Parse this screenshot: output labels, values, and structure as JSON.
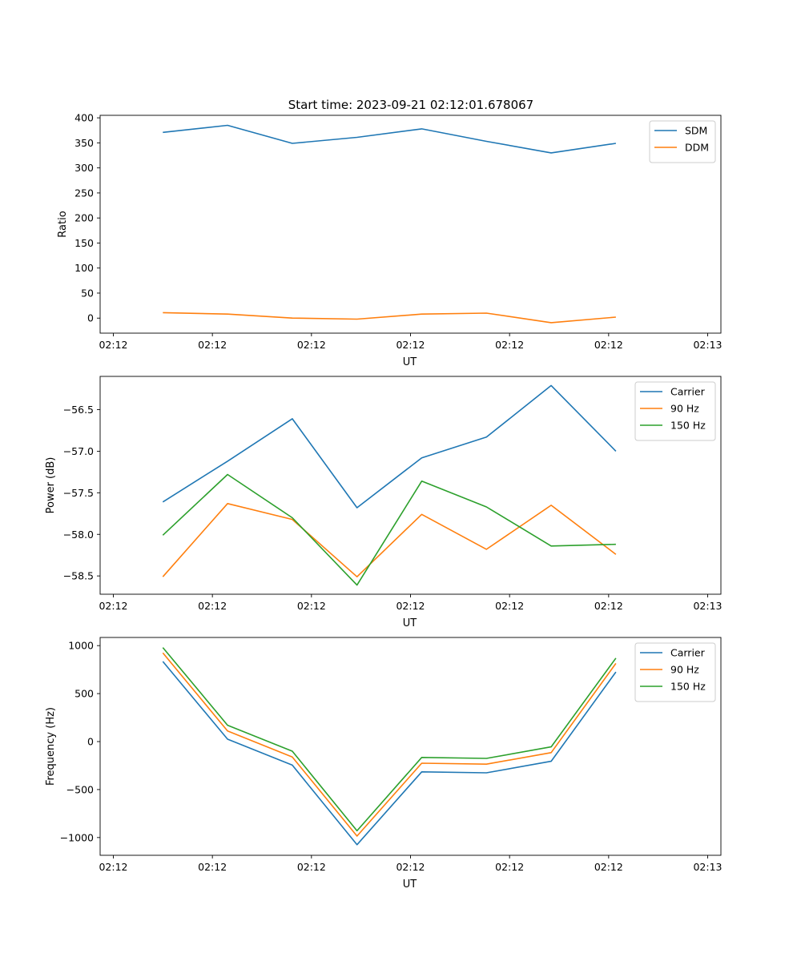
{
  "figure_title": "Start time: 2023-09-21 02:12:01.678067",
  "chart_data": [
    {
      "type": "line",
      "xlabel": "UT",
      "ylabel": "Ratio",
      "ylim": [
        -30,
        405
      ],
      "xlim": [
        -0.2,
        9.2
      ],
      "x_ticks": [
        0,
        1.5,
        3,
        4.5,
        6,
        7.5,
        9
      ],
      "x_tick_labels": [
        "02:12",
        "02:12",
        "02:12",
        "02:12",
        "02:12",
        "02:12",
        "02:13"
      ],
      "y_ticks": [
        0,
        50,
        100,
        150,
        200,
        250,
        300,
        350,
        400
      ],
      "y_tick_labels": [
        "0",
        "50",
        "100",
        "150",
        "200",
        "250",
        "300",
        "350",
        "400"
      ],
      "x": [
        0.75,
        1.73,
        2.71,
        3.69,
        4.67,
        5.65,
        6.63,
        7.61
      ],
      "legend": "top-right",
      "series": [
        {
          "name": "SDM",
          "color": "#1f77b4",
          "values": [
            371,
            385,
            349,
            361,
            378,
            353,
            330,
            349
          ]
        },
        {
          "name": "DDM",
          "color": "#ff7f0e",
          "values": [
            11,
            8,
            0,
            -2,
            8,
            10,
            -9,
            2
          ]
        }
      ]
    },
    {
      "type": "line",
      "xlabel": "UT",
      "ylabel": "Power (dB)",
      "ylim": [
        -58.72,
        -56.1
      ],
      "xlim": [
        -0.2,
        9.2
      ],
      "x_ticks": [
        0,
        1.5,
        3,
        4.5,
        6,
        7.5,
        9
      ],
      "x_tick_labels": [
        "02:12",
        "02:12",
        "02:12",
        "02:12",
        "02:12",
        "02:12",
        "02:13"
      ],
      "y_ticks": [
        -58.5,
        -58.0,
        -57.5,
        -57.0,
        -56.5
      ],
      "y_tick_labels": [
        "−58.5",
        "−58.0",
        "−57.5",
        "−57.0",
        "−56.5"
      ],
      "x": [
        0.75,
        1.73,
        2.71,
        3.69,
        4.67,
        5.65,
        6.63,
        7.61
      ],
      "legend": "top-right",
      "series": [
        {
          "name": "Carrier",
          "color": "#1f77b4",
          "values": [
            -57.61,
            -57.12,
            -56.61,
            -57.68,
            -57.08,
            -56.83,
            -56.21,
            -57.0
          ]
        },
        {
          "name": "90 Hz",
          "color": "#ff7f0e",
          "values": [
            -58.51,
            -57.63,
            -57.82,
            -58.51,
            -57.76,
            -58.18,
            -57.65,
            -58.24
          ]
        },
        {
          "name": "150 Hz",
          "color": "#2ca02c",
          "values": [
            -58.01,
            -57.28,
            -57.8,
            -58.61,
            -57.36,
            -57.67,
            -58.14,
            -58.12
          ]
        }
      ]
    },
    {
      "type": "line",
      "xlabel": "UT",
      "ylabel": "Frequency (Hz)",
      "ylim": [
        -1185,
        1085
      ],
      "xlim": [
        -0.2,
        9.2
      ],
      "x_ticks": [
        0,
        1.5,
        3,
        4.5,
        6,
        7.5,
        9
      ],
      "x_tick_labels": [
        "02:12",
        "02:12",
        "02:12",
        "02:12",
        "02:12",
        "02:12",
        "02:13"
      ],
      "y_ticks": [
        -1000,
        -500,
        0,
        500,
        1000
      ],
      "y_tick_labels": [
        "−1000",
        "−500",
        "0",
        "500",
        "1000"
      ],
      "x": [
        0.75,
        1.73,
        2.71,
        3.69,
        4.67,
        5.65,
        6.63,
        7.61
      ],
      "legend": "top-right",
      "series": [
        {
          "name": "Carrier",
          "color": "#1f77b4",
          "values": [
            835,
            25,
            -245,
            -1075,
            -315,
            -325,
            -205,
            725
          ]
        },
        {
          "name": "90 Hz",
          "color": "#ff7f0e",
          "values": [
            925,
            110,
            -160,
            -985,
            -225,
            -235,
            -115,
            815
          ]
        },
        {
          "name": "150 Hz",
          "color": "#2ca02c",
          "values": [
            980,
            170,
            -100,
            -930,
            -165,
            -175,
            -55,
            870
          ]
        }
      ]
    }
  ]
}
